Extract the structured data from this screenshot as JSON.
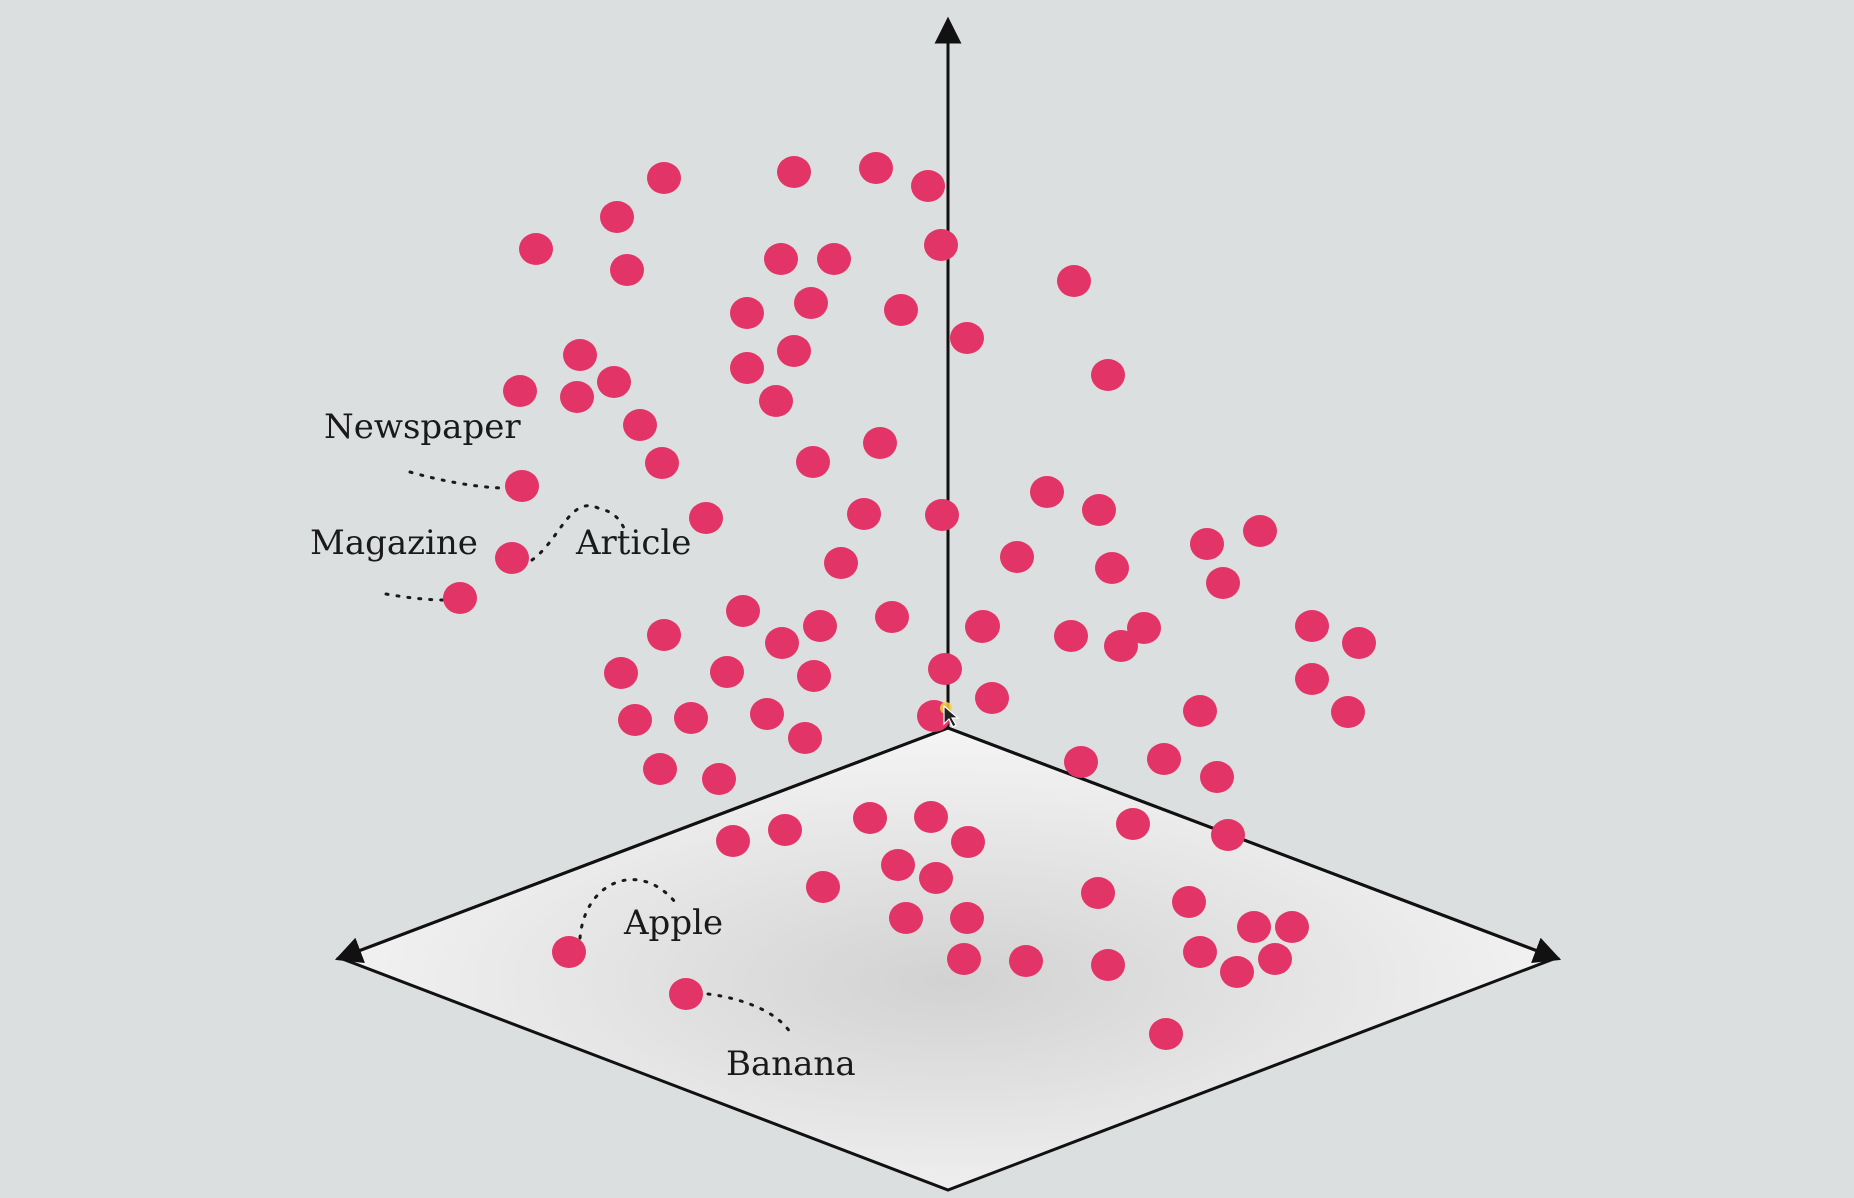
{
  "colors": {
    "background": "#dcdfe0",
    "point": "#e33467",
    "axis": "#111111",
    "plane_center": "#d4d4d4",
    "plane_edge": "#f7f7f7"
  },
  "labels": {
    "newspaper": "Newspaper",
    "magazine": "Magazine",
    "article": "Article",
    "apple": "Apple",
    "banana": "Banana"
  },
  "axes": {
    "count": 3,
    "style": "isometric",
    "vertical_arrow": true,
    "left_arrow": true,
    "right_arrow": true
  },
  "cursor": "mouse-pointer-icon"
}
